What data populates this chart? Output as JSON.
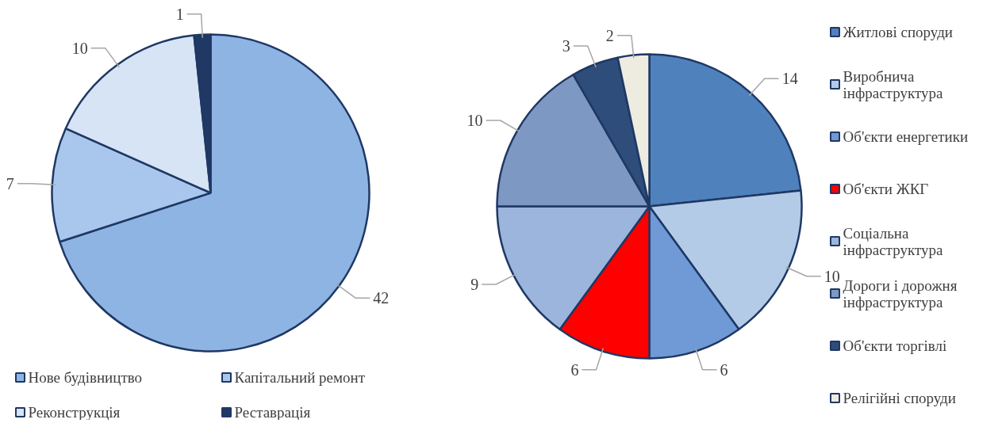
{
  "chart_data": [
    {
      "type": "pie",
      "categories": [
        "Нове будівництво",
        "Капітальний ремонт",
        "Реконструкція",
        "Реставрація"
      ],
      "values": [
        42,
        7,
        10,
        1
      ],
      "colors": [
        "#8eb4e3",
        "#a9c6ec",
        "#d6e4f5",
        "#1f3864"
      ],
      "data_labels": true,
      "legend": "bottom"
    },
    {
      "type": "pie",
      "categories": [
        "Житлові споруди",
        "Виробнича інфраструктура",
        "Об'єкти енергетики",
        "Об'єкти ЖКГ",
        "Соціальна інфраструктура",
        "Дороги і дорожня інфраструктура",
        "Об'єкти торгівлі",
        "Релігійні споруди"
      ],
      "values": [
        14,
        10,
        6,
        6,
        9,
        10,
        3,
        2
      ],
      "colors": [
        "#4f81bd",
        "#b4cbe8",
        "#6f9ad6",
        "#ff0000",
        "#9bb5dc",
        "#7e98c4",
        "#2e4d7b",
        "#eeece1"
      ],
      "data_labels": true,
      "legend": "right"
    }
  ]
}
